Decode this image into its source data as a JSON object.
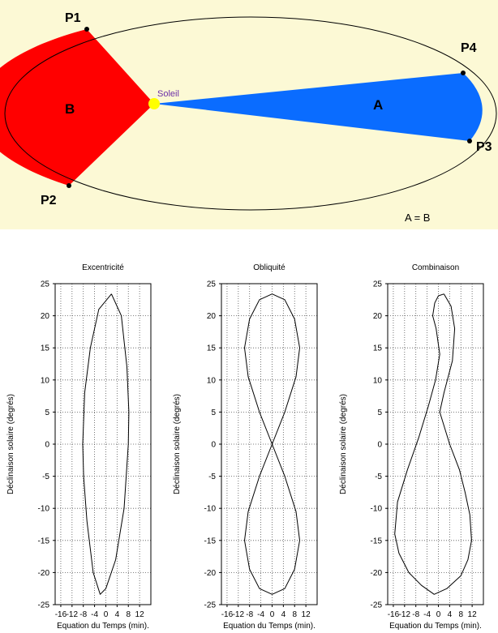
{
  "kepler": {
    "points": {
      "p1": "P1",
      "p2": "P2",
      "p3": "P3",
      "p4": "P4"
    },
    "sun_label": "Soleil",
    "area_a": "A",
    "area_b": "B",
    "equality": "A = B",
    "colors": {
      "background": "#fcf9d5",
      "area_a": "#0a6cff",
      "area_b": "#ff0000",
      "sun": "#ffff00",
      "sun_label": "#6b2fa8"
    }
  },
  "chart_data": [
    {
      "type": "line",
      "title": "Excentricité",
      "xlabel": "Equation du Temps (min).",
      "ylabel": "Déclinaison solaire (degrés)",
      "xlim": [
        -18,
        16
      ],
      "ylim": [
        -25,
        25
      ],
      "xticks": [
        -16,
        -12,
        -8,
        -4,
        0,
        4,
        8,
        12
      ],
      "yticks": [
        -25,
        -20,
        -15,
        -10,
        -5,
        0,
        5,
        10,
        15,
        20,
        25
      ],
      "grid": true,
      "series": [
        {
          "x": [
            2.0,
            5.5,
            7.5,
            8.2,
            8.0,
            6.5,
            3.5,
            0,
            -2.0,
            -4.5,
            -6.7,
            -7.9,
            -8.2,
            -7.5,
            -5.5,
            -2.5,
            2.0
          ],
          "y": [
            23.4,
            20,
            12,
            5,
            0,
            -10,
            -18,
            -22.5,
            -23.4,
            -20,
            -12,
            -5,
            0,
            8,
            15,
            21,
            23.4
          ]
        }
      ]
    },
    {
      "type": "line",
      "title": "Obliquité",
      "xlabel": "Equation du Temps (min).",
      "ylabel": "Déclinaison solaire (degrés)",
      "xlim": [
        -18,
        16
      ],
      "ylim": [
        -25,
        25
      ],
      "xticks": [
        -16,
        -12,
        -8,
        -4,
        0,
        4,
        8,
        12
      ],
      "yticks": [
        -25,
        -20,
        -15,
        -10,
        -5,
        0,
        5,
        10,
        15,
        20,
        25
      ],
      "grid": true,
      "series": [
        {
          "x": [
            0,
            4.5,
            8.0,
            9.8,
            8.5,
            4.5,
            0,
            -4.5,
            -8.5,
            -9.8,
            -8.0,
            -4.5,
            0,
            4.5,
            8.0,
            9.8,
            8.5,
            4.5,
            0,
            -4.5,
            -8.5,
            -9.8,
            -8.0,
            -4.5,
            0
          ],
          "y": [
            23.4,
            22.5,
            19.5,
            15.0,
            10.5,
            5.0,
            0,
            -5.0,
            -10.5,
            -15.0,
            -19.5,
            -22.5,
            -23.4,
            -22.5,
            -19.5,
            -15.0,
            -10.5,
            -5.0,
            0,
            5.0,
            10.5,
            15.0,
            19.5,
            22.5,
            23.4
          ]
        }
      ]
    },
    {
      "type": "line",
      "title": "Combinaison",
      "xlabel": "Equation du Temps (min).",
      "ylabel": "Déclinaison solaire (degrés)",
      "xlim": [
        -18,
        16
      ],
      "ylim": [
        -25,
        25
      ],
      "xticks": [
        -16,
        -12,
        -8,
        -4,
        0,
        4,
        8,
        12
      ],
      "yticks": [
        -25,
        -20,
        -15,
        -10,
        -5,
        0,
        5,
        10,
        15,
        20,
        25
      ],
      "grid": true,
      "series": [
        {
          "x": [
            2.0,
            4.5,
            5.8,
            5.0,
            2.0,
            0.5,
            4.0,
            7.5,
            9.5,
            11.2,
            11.8,
            10.5,
            8.0,
            3.0,
            -1.5,
            -6.0,
            -10.5,
            -14.0,
            -15.5,
            -14.5,
            -11.0,
            -7.0,
            -3.5,
            -1.0,
            0.5,
            -0.8,
            -2.0,
            -1.3,
            0.0,
            2.0
          ],
          "y": [
            23.4,
            21.5,
            18.0,
            13.0,
            8.0,
            5.0,
            0,
            -4.0,
            -7.5,
            -11.0,
            -15.0,
            -18.0,
            -20.5,
            -22.5,
            -23.4,
            -22.0,
            -20.0,
            -17.0,
            -14.0,
            -9.0,
            -4.0,
            1.0,
            6.0,
            10.0,
            14.0,
            18.0,
            20.0,
            22.0,
            23.1,
            23.4
          ]
        }
      ]
    }
  ]
}
